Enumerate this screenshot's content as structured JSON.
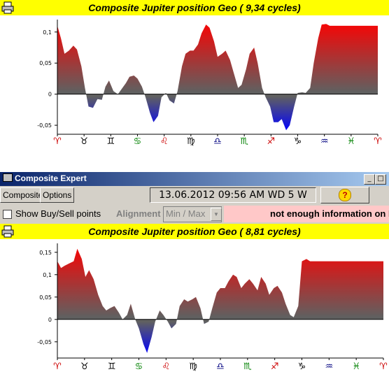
{
  "charts": [
    {
      "title": "Composite Jupiter position Geo  ( 9,34 cycles)",
      "chart_data": {
        "type": "area",
        "title": "Composite Jupiter position Geo  ( 9,34 cycles)",
        "ylim": [
          -0.06,
          0.12
        ],
        "y_ticks": [
          "0,1",
          "0,05",
          "0",
          "-0,05"
        ],
        "y_tick_values": [
          0.1,
          0.05,
          0,
          -0.05
        ],
        "x_ticks": [
          "♈",
          "♉",
          "♊",
          "♋",
          "♌",
          "♍",
          "♎",
          "♏",
          "♐",
          "♑",
          "♒",
          "♓",
          "♈"
        ],
        "x_tick_colors": [
          "#cc0000",
          "#000000",
          "#000000",
          "#008000",
          "#cc0000",
          "#000000",
          "#000080",
          "#008000",
          "#cc0000",
          "#000000",
          "#000080",
          "#008000",
          "#cc0000"
        ],
        "x": [
          0,
          4,
          8,
          13,
          18,
          22,
          27,
          31,
          35,
          40,
          45,
          50,
          54,
          58,
          63,
          68,
          72,
          77,
          81,
          86,
          90,
          95,
          99,
          104,
          108,
          113,
          117,
          122,
          126,
          131,
          135,
          140,
          144,
          149,
          153,
          158,
          162,
          167,
          171,
          176,
          180,
          185,
          189,
          194,
          198,
          203,
          207,
          212,
          216,
          221,
          225,
          230,
          234,
          239,
          243,
          248,
          252,
          257,
          261,
          266,
          270,
          275,
          279,
          284,
          288,
          293,
          297,
          302,
          306,
          311,
          315,
          320,
          324,
          329,
          333,
          338,
          342,
          347,
          351,
          356,
          360
        ],
        "values": [
          0.11,
          0.09,
          0.065,
          0.07,
          0.078,
          0.072,
          0.045,
          0.01,
          -0.02,
          -0.022,
          -0.008,
          -0.009,
          0.012,
          0.022,
          0.005,
          0.0,
          0.008,
          0.018,
          0.028,
          0.03,
          0.025,
          0.012,
          -0.005,
          -0.03,
          -0.045,
          -0.035,
          -0.005,
          0.002,
          -0.01,
          -0.015,
          0.005,
          0.045,
          0.065,
          0.07,
          0.07,
          0.08,
          0.098,
          0.112,
          0.107,
          0.085,
          0.06,
          0.065,
          0.07,
          0.055,
          0.035,
          0.01,
          0.015,
          0.04,
          0.065,
          0.075,
          0.05,
          0.01,
          -0.005,
          -0.02,
          -0.045,
          -0.045,
          -0.04,
          -0.058,
          -0.05,
          -0.02,
          0.002,
          0.003,
          0.002,
          0.01,
          0.05,
          0.09,
          0.112,
          0.113,
          0.11,
          0.11,
          0.11,
          0.11,
          0.11,
          0.11,
          0.11,
          0.11,
          0.11,
          0.11,
          0.11,
          0.11,
          0.11
        ],
        "colors": {
          "high": "#ff0000",
          "mid": "#606060",
          "low": "#0000ff"
        }
      }
    },
    {
      "title": "Composite Jupiter position Geo  ( 8,81 cycles)",
      "chart_data": {
        "type": "area",
        "title": "Composite Jupiter position Geo  ( 8,81 cycles)",
        "ylim": [
          -0.08,
          0.17
        ],
        "y_ticks": [
          "0,15",
          "0,1",
          "0,05",
          "0",
          "-0,05"
        ],
        "y_tick_values": [
          0.15,
          0.1,
          0.05,
          0,
          -0.05
        ],
        "x_ticks": [
          "♈",
          "♉",
          "♊",
          "♋",
          "♌",
          "♍",
          "♎",
          "♏",
          "♐",
          "♑",
          "♒",
          "♓",
          "♈"
        ],
        "x_tick_colors": [
          "#cc0000",
          "#000000",
          "#000000",
          "#008000",
          "#cc0000",
          "#000000",
          "#000080",
          "#008000",
          "#cc0000",
          "#000000",
          "#000080",
          "#008000",
          "#cc0000"
        ],
        "x": [
          0,
          4,
          8,
          13,
          18,
          22,
          27,
          31,
          35,
          40,
          45,
          50,
          54,
          58,
          63,
          68,
          72,
          77,
          81,
          86,
          90,
          95,
          99,
          104,
          108,
          113,
          117,
          122,
          126,
          131,
          135,
          140,
          144,
          149,
          153,
          158,
          162,
          167,
          171,
          176,
          180,
          185,
          189,
          194,
          198,
          203,
          207,
          212,
          216,
          221,
          225,
          230,
          234,
          239,
          243,
          248,
          252,
          257,
          261,
          266,
          270,
          275,
          279,
          284,
          288,
          293,
          297,
          302,
          306,
          311,
          315,
          320,
          324,
          329,
          333,
          338,
          342,
          347,
          351,
          356,
          360
        ],
        "values": [
          0.13,
          0.115,
          0.12,
          0.125,
          0.13,
          0.158,
          0.135,
          0.095,
          0.11,
          0.09,
          0.055,
          0.03,
          0.02,
          0.025,
          0.03,
          0.015,
          0.0,
          0.01,
          0.035,
          0.0,
          -0.02,
          -0.055,
          -0.075,
          -0.04,
          -0.005,
          0.02,
          0.01,
          -0.005,
          -0.02,
          -0.01,
          0.03,
          0.045,
          0.04,
          0.045,
          0.05,
          0.025,
          -0.01,
          -0.005,
          0.025,
          0.06,
          0.07,
          0.07,
          0.085,
          0.1,
          0.095,
          0.07,
          0.08,
          0.09,
          0.08,
          0.065,
          0.095,
          0.08,
          0.055,
          0.07,
          0.075,
          0.06,
          0.035,
          0.01,
          0.005,
          0.03,
          0.13,
          0.135,
          0.13,
          0.13,
          0.13,
          0.13,
          0.13,
          0.13,
          0.13,
          0.13,
          0.13,
          0.13,
          0.13,
          0.13,
          0.13,
          0.13,
          0.13,
          0.13,
          0.13,
          0.13,
          0.13
        ],
        "colors": {
          "high": "#ff0000",
          "mid": "#606060",
          "low": "#0000ff"
        }
      }
    }
  ],
  "window": {
    "title": "Composite Expert",
    "buttons": [
      "_",
      "□"
    ]
  },
  "toolbar": {
    "tabs": [
      "Composite",
      "Options"
    ],
    "date_display": "13.06.2012  09:56 AM WD  5 W",
    "help_label": "?"
  },
  "options": {
    "show_buy_sell_label": "Show Buy/Sell points",
    "alignment_label": "Alignment",
    "alignment_value": "Min / Max",
    "info_message": "not enough information on B"
  }
}
